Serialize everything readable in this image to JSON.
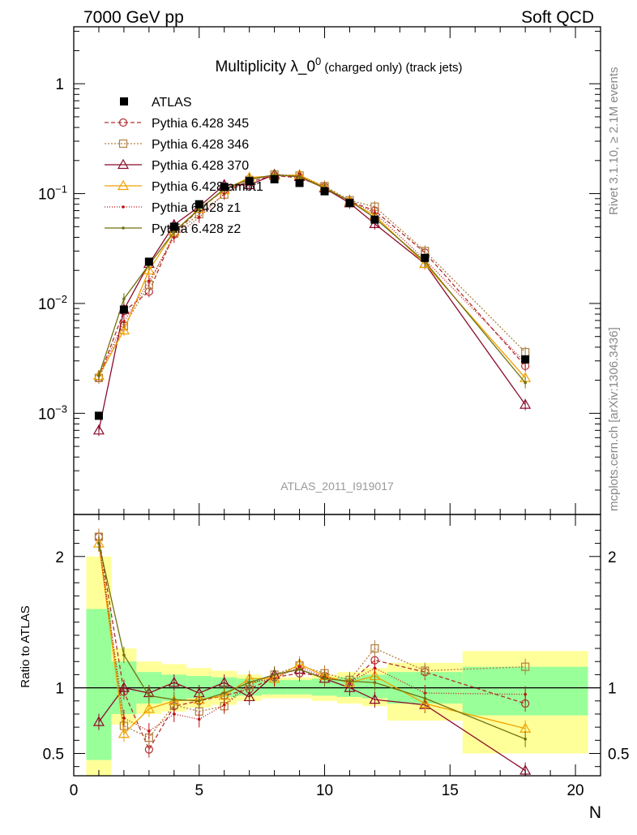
{
  "header": {
    "left": "7000 GeV pp",
    "right": "Soft QCD"
  },
  "side": {
    "top": "Rivet 3.1.10, ≥ 2.1M events",
    "bottom": "mcplots.cern.ch [arXiv:1306.3436]"
  },
  "title_main": "Multiplicity λ_0",
  "title_sup": "0",
  "title_sub": " (charged only) (track jets)",
  "analysis_id": "ATLAS_2011_I919017",
  "ratio_ylabel": "Ratio to ATLAS",
  "xaxis_label": "N",
  "chart_data": [
    {
      "type": "line",
      "scale": "log",
      "xlim": [
        0,
        21
      ],
      "ylim": [
        0.00012,
        3.3
      ],
      "xticks": [
        0,
        5,
        10,
        15,
        20
      ],
      "yticks": [
        {
          "value": 1,
          "label": "1"
        },
        {
          "value": 0.1,
          "label": "10−1"
        },
        {
          "value": 0.01,
          "label": "10−2"
        },
        {
          "value": 0.001,
          "label": "10−3"
        }
      ],
      "legend_position": "top-left",
      "x": [
        1,
        2,
        3,
        4,
        5,
        6,
        7,
        8,
        9,
        10,
        11,
        12,
        14,
        18
      ],
      "reference": {
        "name": "ATLAS",
        "color": "#000000",
        "values": [
          0.00095,
          0.0088,
          0.024,
          0.05,
          0.08,
          0.115,
          0.13,
          0.135,
          0.125,
          0.105,
          0.082,
          0.058,
          0.026,
          0.0031
        ]
      },
      "series": [
        {
          "name": "Pythia 6.428 345",
          "color": "#b03030",
          "dash": "5,3",
          "marker": "circle",
          "values": [
            0.0021,
            0.0085,
            0.0128,
            0.043,
            0.072,
            0.108,
            0.128,
            0.146,
            0.139,
            0.115,
            0.085,
            0.07,
            0.029,
            0.0027
          ]
        },
        {
          "name": "Pythia 6.428 346",
          "color": "#b08040",
          "dash": "2,2",
          "marker": "square",
          "values": [
            0.0021,
            0.0062,
            0.0148,
            0.043,
            0.065,
            0.098,
            0.133,
            0.149,
            0.146,
            0.117,
            0.087,
            0.076,
            0.03,
            0.0036
          ]
        },
        {
          "name": "Pythia 6.428 370",
          "color": "#8b0a2a",
          "dash": "",
          "marker": "triangle",
          "values": [
            0.0007,
            0.0088,
            0.023,
            0.052,
            0.076,
            0.12,
            0.12,
            0.149,
            0.142,
            0.112,
            0.082,
            0.053,
            0.023,
            0.0012
          ]
        },
        {
          "name": "Pythia 6.428 ambt1",
          "color": "#f0a000",
          "dash": "",
          "marker": "triangle",
          "values": [
            0.0022,
            0.0057,
            0.02,
            0.045,
            0.073,
            0.108,
            0.14,
            0.145,
            0.148,
            0.114,
            0.085,
            0.063,
            0.023,
            0.0021
          ]
        },
        {
          "name": "Pythia 6.428 z1",
          "color": "#c01010",
          "dash": "1,2",
          "marker": "dot",
          "values": [
            0.0022,
            0.0068,
            0.016,
            0.04,
            0.061,
            0.1,
            0.135,
            0.145,
            0.145,
            0.113,
            0.085,
            0.067,
            0.025,
            0.0029
          ]
        },
        {
          "name": "Pythia 6.428 z2",
          "color": "#707010",
          "dash": "",
          "marker": "dot",
          "values": [
            0.0022,
            0.011,
            0.0225,
            0.045,
            0.072,
            0.11,
            0.135,
            0.148,
            0.143,
            0.112,
            0.086,
            0.06,
            0.024,
            0.0019
          ]
        }
      ]
    },
    {
      "type": "line",
      "ylabel": "Ratio to ATLAS",
      "xlabel": "N",
      "xlim": [
        0,
        21
      ],
      "ylim": [
        0.33,
        2.32
      ],
      "yticks": [
        0.5,
        1,
        2
      ],
      "bands": [
        {
          "x0": 0.5,
          "x1": 1.5,
          "inner": [
            0.45,
            1.6
          ],
          "outer": [
            0.33,
            2.0
          ]
        },
        {
          "x0": 1.5,
          "x1": 2.5,
          "inner": [
            0.8,
            1.2
          ],
          "outer": [
            0.72,
            1.3
          ]
        },
        {
          "x0": 2.5,
          "x1": 3.5,
          "inner": [
            0.88,
            1.12
          ],
          "outer": [
            0.8,
            1.2
          ]
        },
        {
          "x0": 3.5,
          "x1": 4.5,
          "inner": [
            0.9,
            1.1
          ],
          "outer": [
            0.82,
            1.18
          ]
        },
        {
          "x0": 4.5,
          "x1": 5.5,
          "inner": [
            0.92,
            1.09
          ],
          "outer": [
            0.85,
            1.15
          ]
        },
        {
          "x0": 5.5,
          "x1": 6.5,
          "inner": [
            0.93,
            1.08
          ],
          "outer": [
            0.87,
            1.13
          ]
        },
        {
          "x0": 6.5,
          "x1": 7.5,
          "inner": [
            0.94,
            1.07
          ],
          "outer": [
            0.9,
            1.1
          ]
        },
        {
          "x0": 7.5,
          "x1": 8.5,
          "inner": [
            0.95,
            1.06
          ],
          "outer": [
            0.92,
            1.08
          ]
        },
        {
          "x0": 8.5,
          "x1": 9.5,
          "inner": [
            0.95,
            1.06
          ],
          "outer": [
            0.92,
            1.08
          ]
        },
        {
          "x0": 9.5,
          "x1": 10.5,
          "inner": [
            0.94,
            1.07
          ],
          "outer": [
            0.9,
            1.1
          ]
        },
        {
          "x0": 10.5,
          "x1": 11.5,
          "inner": [
            0.93,
            1.08
          ],
          "outer": [
            0.88,
            1.12
          ]
        },
        {
          "x0": 11.5,
          "x1": 12.5,
          "inner": [
            0.92,
            1.1
          ],
          "outer": [
            0.86,
            1.15
          ]
        },
        {
          "x0": 12.5,
          "x1": 15.5,
          "inner": [
            0.88,
            1.12
          ],
          "outer": [
            0.75,
            1.19
          ]
        },
        {
          "x0": 15.5,
          "x1": 20.5,
          "inner": [
            0.79,
            1.16
          ],
          "outer": [
            0.5,
            1.28
          ]
        }
      ],
      "x": [
        1,
        2,
        3,
        4,
        5,
        6,
        7,
        8,
        9,
        10,
        11,
        12,
        14,
        18
      ],
      "series": [
        {
          "name": "Pythia 6.428 345",
          "values": [
            2.15,
            0.97,
            0.53,
            0.86,
            0.9,
            0.94,
            0.99,
            1.08,
            1.11,
            1.09,
            1.04,
            1.21,
            1.12,
            0.88
          ]
        },
        {
          "name": "Pythia 6.428 346",
          "values": [
            2.15,
            0.71,
            0.62,
            0.87,
            0.82,
            0.86,
            1.02,
            1.1,
            1.17,
            1.11,
            1.06,
            1.3,
            1.13,
            1.16
          ]
        },
        {
          "name": "Pythia 6.428 370",
          "values": [
            0.74,
            1.0,
            0.96,
            1.04,
            0.96,
            1.04,
            0.93,
            1.1,
            1.14,
            1.07,
            1.0,
            0.91,
            0.87,
            0.37
          ]
        },
        {
          "name": "Pythia 6.428 ambt1",
          "values": [
            2.1,
            0.65,
            0.84,
            0.9,
            0.91,
            0.94,
            1.07,
            1.07,
            1.18,
            1.09,
            1.04,
            1.09,
            0.88,
            0.69
          ]
        },
        {
          "name": "Pythia 6.428 z1",
          "values": [
            2.1,
            0.77,
            0.67,
            0.8,
            0.76,
            0.87,
            1.04,
            1.07,
            1.16,
            1.08,
            1.04,
            1.15,
            0.96,
            0.95
          ]
        },
        {
          "name": "Pythia 6.428 z2",
          "values": [
            2.1,
            1.25,
            0.94,
            0.91,
            0.9,
            0.96,
            1.04,
            1.1,
            1.14,
            1.07,
            1.05,
            1.04,
            0.92,
            0.61
          ]
        }
      ]
    }
  ]
}
